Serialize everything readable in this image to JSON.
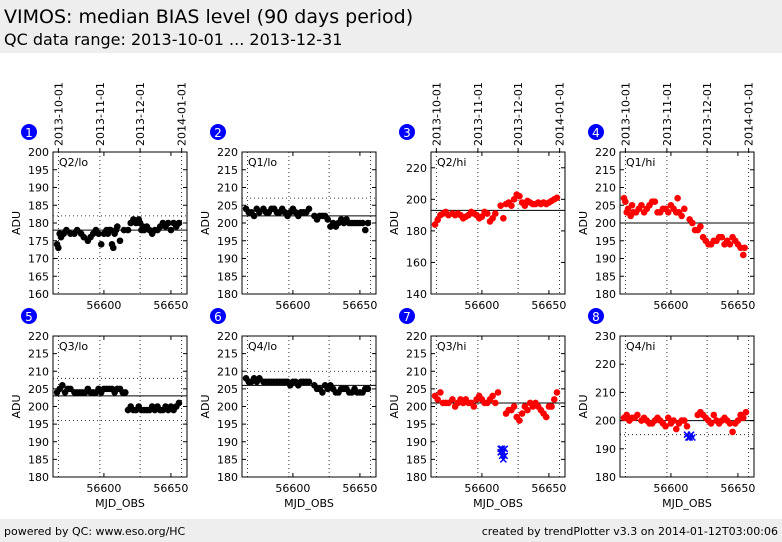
{
  "header": {
    "title": "VIMOS: median BIAS level (90 days period)",
    "subtitle": "QC data range: 2013-10-01 ... 2013-12-31"
  },
  "footer": {
    "left": "powered by QC: www.eso.org/HC",
    "right": "created by trendPlotter v3.3 on 2014-01-12T03:00:06"
  },
  "colors": {
    "lo": "#000000",
    "hi": "#ff0000",
    "outlier": "#0000ff",
    "badge": "#0000ff"
  },
  "chart_data": [
    {
      "id": 1,
      "badge": "1",
      "label": "Q2/lo",
      "type": "scatter",
      "xlabel": "",
      "ylabel": "ADU",
      "xlim": [
        56562,
        56662
      ],
      "ylim": [
        160,
        200
      ],
      "yticks": [
        160,
        165,
        170,
        175,
        180,
        185,
        190,
        195,
        200
      ],
      "xticks": [
        56600,
        56650
      ],
      "date_ticks": [
        "2013-10-01",
        "2013-11-01",
        "2013-12-01",
        "2014-01-01"
      ],
      "date_tick_x": [
        56566,
        56597,
        56627,
        56658
      ],
      "reference": 178,
      "gridlines": [
        170,
        182
      ],
      "marker": "dot",
      "color_key": "lo",
      "x": [
        56565,
        56566,
        56567,
        56568,
        56570,
        56572,
        56575,
        56578,
        56580,
        56583,
        56585,
        56588,
        56590,
        56592,
        56594,
        56596,
        56598,
        56600,
        56602,
        56603,
        56604,
        56605,
        56606,
        56607,
        56608,
        56609,
        56610,
        56612,
        56615,
        56618,
        56620,
        56622,
        56624,
        56626,
        56627,
        56628,
        56629,
        56630,
        56632,
        56634,
        56636,
        56638,
        56640,
        56642,
        56644,
        56646,
        56648,
        56650,
        56652,
        56654,
        56656
      ],
      "y": [
        174,
        173,
        177,
        176,
        177,
        178,
        177,
        177,
        178,
        177,
        176,
        175,
        176,
        177,
        178,
        177,
        174,
        177,
        178,
        177,
        178,
        178,
        174,
        173,
        177,
        178,
        179,
        175,
        178,
        178,
        180,
        181,
        180,
        181,
        180,
        178,
        179,
        178,
        179,
        178,
        177,
        178,
        178,
        179,
        180,
        179,
        180,
        178,
        180,
        179,
        180
      ],
      "outliers_x": [],
      "outliers_y": []
    },
    {
      "id": 2,
      "badge": "2",
      "label": "Q1/lo",
      "type": "scatter",
      "xlabel": "",
      "ylabel": "ADU",
      "xlim": [
        56562,
        56662
      ],
      "ylim": [
        180,
        220
      ],
      "yticks": [
        180,
        185,
        190,
        195,
        200,
        205,
        210,
        215,
        220
      ],
      "xticks": [
        56600,
        56650
      ],
      "date_ticks": [],
      "date_tick_x": [],
      "reference": 202,
      "gridlines": [
        207
      ],
      "marker": "dot",
      "color_key": "lo",
      "x": [
        56565,
        56567,
        56569,
        56571,
        56573,
        56575,
        56578,
        56580,
        56582,
        56584,
        56586,
        56588,
        56590,
        56592,
        56594,
        56596,
        56598,
        56600,
        56602,
        56604,
        56606,
        56608,
        56610,
        56612,
        56616,
        56618,
        56620,
        56622,
        56624,
        56626,
        56628,
        56630,
        56632,
        56634,
        56636,
        56638,
        56640,
        56642,
        56644,
        56646,
        56648,
        56650,
        56652,
        56654,
        56656
      ],
      "y": [
        204,
        203,
        203,
        202,
        204,
        203,
        204,
        203,
        203,
        204,
        204,
        203,
        203,
        204,
        203,
        202,
        203,
        204,
        203,
        202,
        203,
        203,
        203,
        204,
        202,
        201,
        202,
        202,
        202,
        201,
        199,
        200,
        199,
        200,
        201,
        200,
        201,
        200,
        200,
        200,
        200,
        200,
        200,
        198,
        200
      ],
      "outliers_x": [],
      "outliers_y": []
    },
    {
      "id": 3,
      "badge": "3",
      "label": "Q2/hi",
      "type": "scatter",
      "xlabel": "",
      "ylabel": "ADU",
      "xlim": [
        56562,
        56662
      ],
      "ylim": [
        140,
        230
      ],
      "yticks": [
        140,
        160,
        180,
        200,
        220
      ],
      "xticks": [
        56600,
        56650
      ],
      "date_ticks": [
        "2013-10-01",
        "2013-11-01",
        "2013-12-01",
        "2014-01-01"
      ],
      "date_tick_x": [
        56566,
        56597,
        56627,
        56658
      ],
      "reference": 193,
      "gridlines": [],
      "marker": "dot",
      "color_key": "hi",
      "x": [
        56565,
        56567,
        56569,
        56571,
        56573,
        56575,
        56578,
        56580,
        56582,
        56584,
        56586,
        56588,
        56590,
        56592,
        56594,
        56596,
        56598,
        56600,
        56602,
        56604,
        56606,
        56608,
        56610,
        56614,
        56616,
        56618,
        56620,
        56622,
        56624,
        56626,
        56628,
        56630,
        56632,
        56634,
        56636,
        56638,
        56640,
        56642,
        56644,
        56646,
        56648,
        56650,
        56652,
        56654,
        56656
      ],
      "y": [
        184,
        187,
        190,
        191,
        192,
        190,
        191,
        190,
        191,
        190,
        188,
        189,
        190,
        192,
        191,
        190,
        188,
        189,
        192,
        191,
        186,
        188,
        191,
        196,
        188,
        197,
        198,
        196,
        200,
        203,
        202,
        198,
        196,
        199,
        198,
        197,
        197,
        198,
        197,
        198,
        197,
        198,
        199,
        200,
        201
      ],
      "outliers_x": [],
      "outliers_y": []
    },
    {
      "id": 4,
      "badge": "4",
      "label": "Q1/hi",
      "type": "scatter",
      "xlabel": "",
      "ylabel": "ADU",
      "xlim": [
        56562,
        56662
      ],
      "ylim": [
        180,
        220
      ],
      "yticks": [
        180,
        185,
        190,
        195,
        200,
        205,
        210,
        215,
        220
      ],
      "xticks": [
        56600,
        56650
      ],
      "date_ticks": [
        "2013-10-01",
        "2013-11-01",
        "2013-12-01",
        "2014-01-01"
      ],
      "date_tick_x": [
        56566,
        56597,
        56627,
        56658
      ],
      "reference": 200,
      "gridlines": [],
      "marker": "dot",
      "color_key": "hi",
      "x": [
        56565,
        56566,
        56567,
        56568,
        56570,
        56571,
        56572,
        56574,
        56576,
        56578,
        56580,
        56582,
        56584,
        56586,
        56588,
        56590,
        56592,
        56594,
        56596,
        56598,
        56600,
        56602,
        56604,
        56605,
        56606,
        56608,
        56610,
        56614,
        56616,
        56618,
        56620,
        56622,
        56624,
        56626,
        56628,
        56630,
        56632,
        56634,
        56636,
        56638,
        56640,
        56642,
        56644,
        56646,
        56648,
        56650,
        56652,
        56654,
        56655
      ],
      "y": [
        207,
        206,
        203,
        204,
        202,
        205,
        203,
        203,
        204,
        205,
        203,
        204,
        205,
        206,
        206,
        203,
        203,
        204,
        204,
        203,
        205,
        204,
        203,
        207,
        203,
        202,
        204,
        201,
        200,
        198,
        198,
        199,
        196,
        195,
        194,
        194,
        195,
        195,
        196,
        196,
        194,
        195,
        194,
        196,
        195,
        194,
        193,
        191,
        193
      ],
      "outliers_x": [],
      "outliers_y": []
    },
    {
      "id": 5,
      "badge": "5",
      "label": "Q3/lo",
      "type": "scatter",
      "xlabel": "MJD_OBS",
      "ylabel": "ADU",
      "xlim": [
        56562,
        56662
      ],
      "ylim": [
        180,
        220
      ],
      "yticks": [
        180,
        185,
        190,
        195,
        200,
        205,
        210,
        215,
        220
      ],
      "xticks": [
        56600,
        56650
      ],
      "date_ticks": [],
      "date_tick_x": [],
      "reference": 203,
      "gridlines": [
        208,
        196
      ],
      "marker": "dot",
      "color_key": "lo",
      "x": [
        56565,
        56567,
        56569,
        56571,
        56573,
        56575,
        56578,
        56580,
        56582,
        56584,
        56586,
        56588,
        56590,
        56592,
        56594,
        56596,
        56598,
        56600,
        56602,
        56604,
        56606,
        56608,
        56610,
        56612,
        56614,
        56616,
        56618,
        56620,
        56622,
        56624,
        56626,
        56628,
        56630,
        56632,
        56634,
        56636,
        56638,
        56640,
        56642,
        56644,
        56646,
        56648,
        56650,
        56652,
        56654,
        56656
      ],
      "y": [
        204,
        205,
        206,
        204,
        205,
        205,
        204,
        204,
        204,
        204,
        204,
        205,
        204,
        204,
        204,
        205,
        204,
        205,
        205,
        205,
        205,
        204,
        205,
        205,
        204,
        204,
        199,
        200,
        199,
        199,
        200,
        199,
        199,
        199,
        199,
        200,
        199,
        200,
        199,
        199,
        200,
        199,
        200,
        199,
        200,
        201
      ],
      "outliers_x": [],
      "outliers_y": []
    },
    {
      "id": 6,
      "badge": "6",
      "label": "Q4/lo",
      "type": "scatter",
      "xlabel": "MJD_OBS",
      "ylabel": "ADU",
      "xlim": [
        56562,
        56662
      ],
      "ylim": [
        180,
        220
      ],
      "yticks": [
        180,
        185,
        190,
        195,
        200,
        205,
        210,
        215,
        220
      ],
      "xticks": [
        56600,
        56650
      ],
      "date_ticks": [],
      "date_tick_x": [],
      "reference": 206,
      "gridlines": [
        210
      ],
      "marker": "dot",
      "color_key": "lo",
      "x": [
        56565,
        56567,
        56569,
        56571,
        56573,
        56575,
        56578,
        56580,
        56582,
        56584,
        56586,
        56588,
        56590,
        56592,
        56594,
        56596,
        56598,
        56600,
        56602,
        56604,
        56606,
        56608,
        56610,
        56612,
        56616,
        56618,
        56620,
        56622,
        56624,
        56626,
        56628,
        56630,
        56632,
        56634,
        56636,
        56638,
        56640,
        56642,
        56644,
        56646,
        56648,
        56650,
        56652,
        56654,
        56656
      ],
      "y": [
        208,
        207,
        207,
        208,
        207,
        208,
        207,
        207,
        207,
        207,
        207,
        207,
        207,
        207,
        207,
        207,
        206,
        207,
        207,
        206,
        207,
        207,
        207,
        207,
        206,
        205,
        205,
        204,
        206,
        205,
        206,
        205,
        204,
        204,
        205,
        205,
        205,
        204,
        204,
        205,
        204,
        204,
        204,
        205,
        205
      ],
      "outliers_x": [],
      "outliers_y": []
    },
    {
      "id": 7,
      "badge": "7",
      "label": "Q3/hi",
      "type": "scatter",
      "xlabel": "MJD_OBS",
      "ylabel": "ADU",
      "xlim": [
        56562,
        56662
      ],
      "ylim": [
        180,
        220
      ],
      "yticks": [
        180,
        185,
        190,
        195,
        200,
        205,
        210,
        215,
        220
      ],
      "xticks": [
        56600,
        56650
      ],
      "date_ticks": [],
      "date_tick_x": [],
      "reference": 201,
      "gridlines": [],
      "marker": "dot",
      "color_key": "hi",
      "x": [
        56565,
        56567,
        56569,
        56571,
        56573,
        56575,
        56578,
        56580,
        56582,
        56584,
        56586,
        56588,
        56590,
        56592,
        56594,
        56596,
        56598,
        56600,
        56602,
        56604,
        56606,
        56608,
        56610,
        56612,
        56618,
        56620,
        56622,
        56624,
        56626,
        56628,
        56630,
        56632,
        56634,
        56636,
        56638,
        56640,
        56642,
        56644,
        56646,
        56648,
        56650,
        56652,
        56654,
        56656
      ],
      "y": [
        203,
        202,
        204,
        201,
        201,
        201,
        202,
        200,
        201,
        202,
        201,
        202,
        201,
        201,
        200,
        202,
        203,
        202,
        201,
        201,
        202,
        203,
        201,
        204,
        198,
        199,
        199,
        200,
        197,
        196,
        198,
        200,
        199,
        201,
        200,
        201,
        200,
        199,
        198,
        197,
        200,
        200,
        202,
        204
      ],
      "outliers_x": [
        56614,
        56614,
        56615,
        56615,
        56616,
        56616,
        56617,
        56617
      ],
      "outliers_y": [
        188,
        187,
        186,
        188,
        185,
        187,
        186,
        188
      ]
    },
    {
      "id": 8,
      "badge": "8",
      "label": "Q4/hi",
      "type": "scatter",
      "xlabel": "MJD_OBS",
      "ylabel": "ADU",
      "xlim": [
        56562,
        56662
      ],
      "ylim": [
        180,
        230
      ],
      "yticks": [
        180,
        190,
        200,
        210,
        220,
        230
      ],
      "xticks": [
        56600,
        56650
      ],
      "date_ticks": [],
      "date_tick_x": [],
      "reference": 200,
      "gridlines": [
        195
      ],
      "marker": "dot",
      "color_key": "hi",
      "x": [
        56565,
        56567,
        56569,
        56571,
        56573,
        56575,
        56578,
        56580,
        56582,
        56584,
        56586,
        56588,
        56590,
        56592,
        56594,
        56596,
        56598,
        56600,
        56602,
        56604,
        56606,
        56608,
        56610,
        56612,
        56620,
        56622,
        56624,
        56626,
        56628,
        56630,
        56632,
        56634,
        56636,
        56638,
        56640,
        56642,
        56644,
        56646,
        56648,
        56650,
        56652,
        56654,
        56656
      ],
      "y": [
        201,
        202,
        200,
        201,
        201,
        202,
        200,
        201,
        200,
        199,
        199,
        200,
        201,
        200,
        199,
        198,
        201,
        199,
        200,
        197,
        199,
        200,
        200,
        198,
        202,
        203,
        202,
        201,
        200,
        199,
        202,
        200,
        199,
        200,
        201,
        200,
        199,
        196,
        199,
        200,
        202,
        201,
        203
      ],
      "outliers_x": [
        56612,
        56613,
        56614,
        56615,
        56616
      ],
      "outliers_y": [
        195,
        194,
        194,
        195,
        194
      ]
    }
  ]
}
